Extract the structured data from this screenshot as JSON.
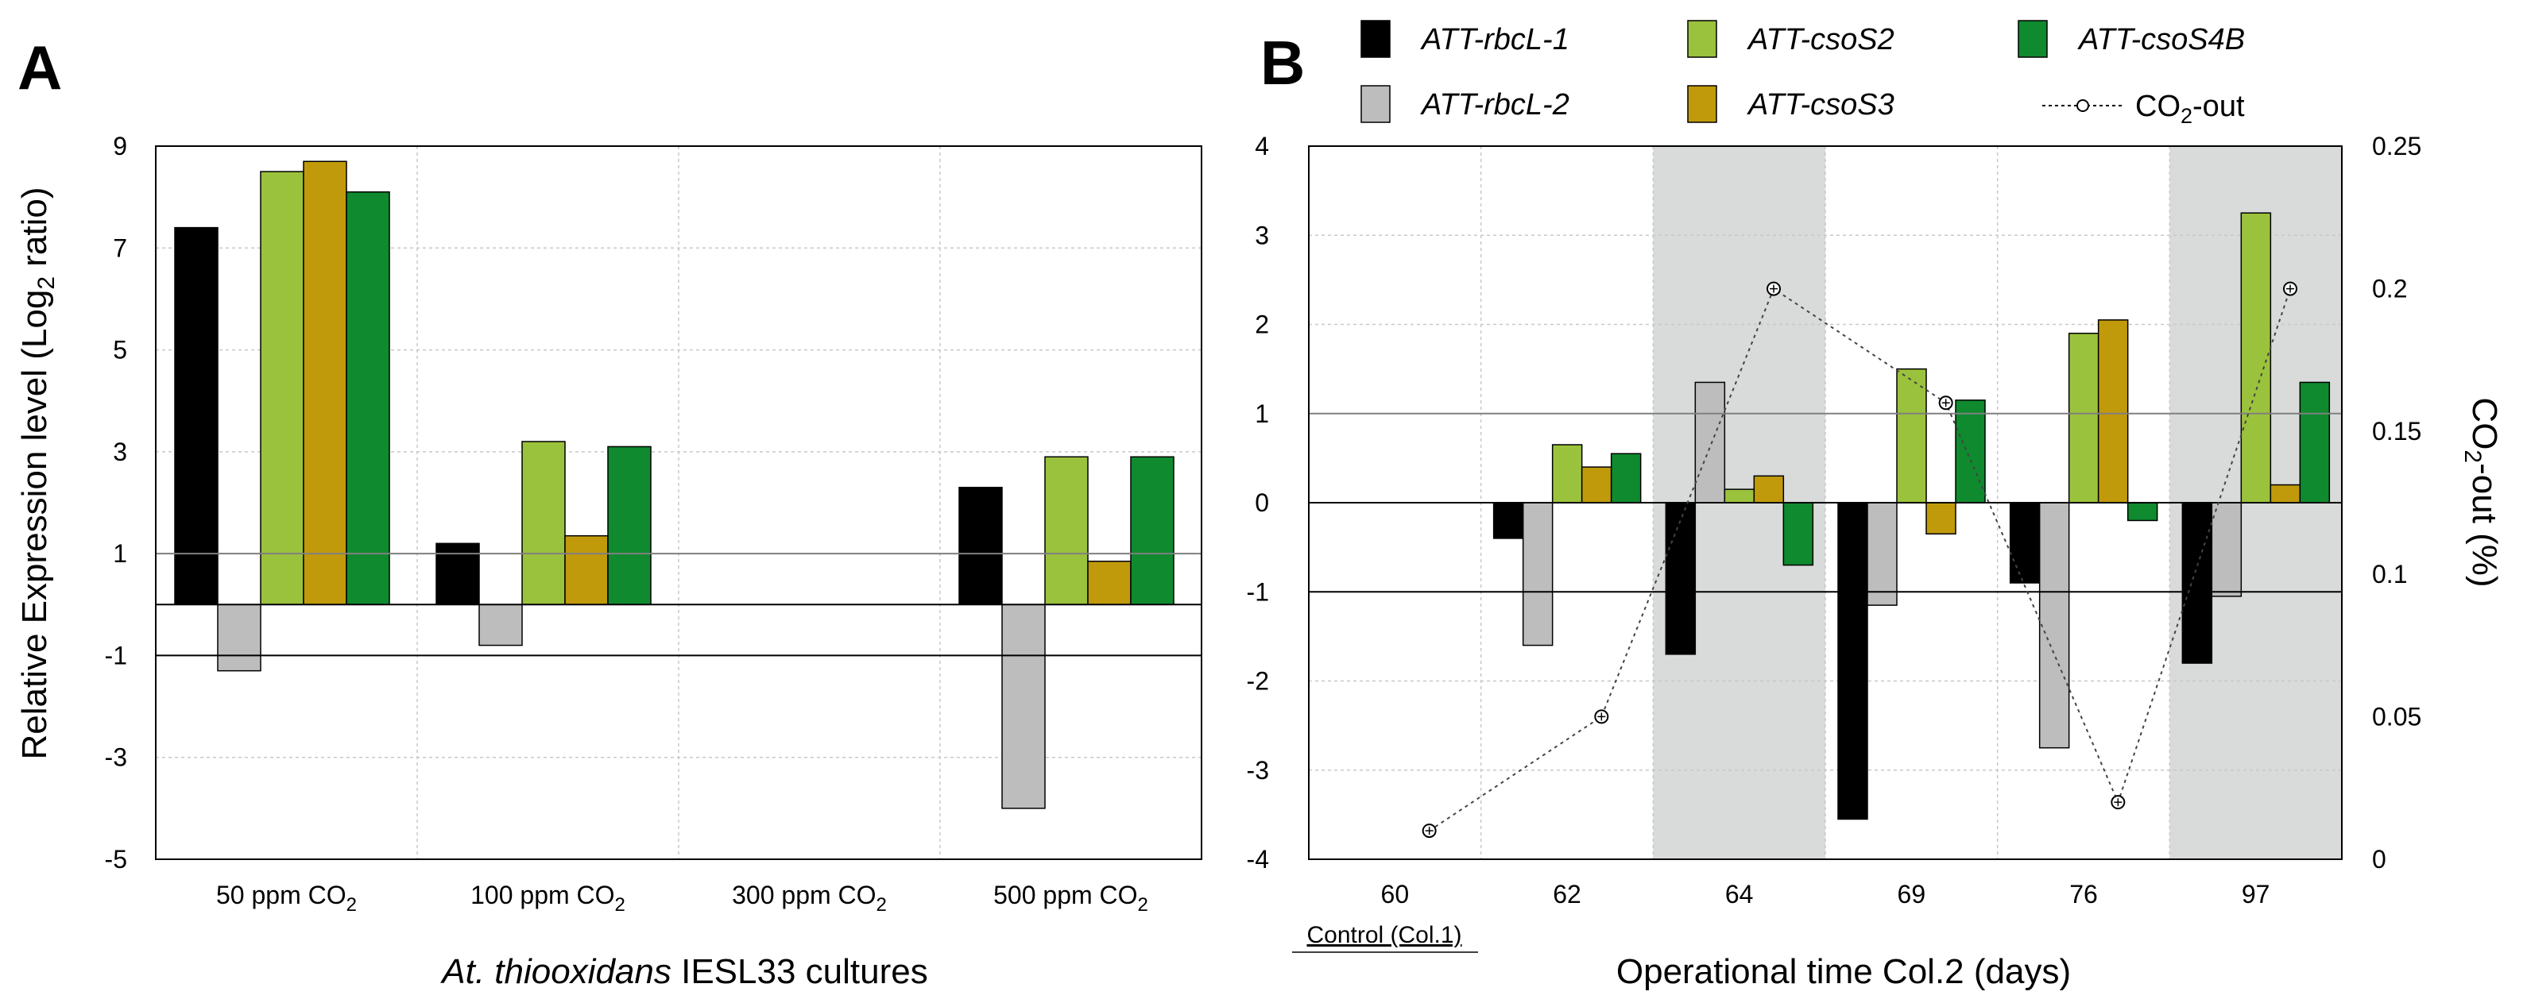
{
  "colors": {
    "rbcL1": "#000000",
    "rbcL2": "#bdbdbd",
    "csoS2": "#9bc23c",
    "csoS3": "#c19a0b",
    "csoS4B": "#0f8a2e",
    "shade": "#d9dada"
  },
  "legend": {
    "items": [
      {
        "key": "rbcL1",
        "label": "ATT-rbcL-1"
      },
      {
        "key": "csoS2",
        "label": "ATT-csoS2"
      },
      {
        "key": "csoS4B",
        "label": "ATT-csoS4B"
      },
      {
        "key": "rbcL2",
        "label": "ATT-rbcL-2"
      },
      {
        "key": "csoS3",
        "label": "ATT-csoS3"
      }
    ],
    "co2_label": "CO",
    "co2_sub": "2",
    "co2_suffix": "-out"
  },
  "chart_data": [
    {
      "panel": "A",
      "type": "bar",
      "ylabel": "Relative Expression level (Log",
      "ylabel_sub": "2",
      "ylabel_suffix": " ratio)",
      "xlabel_italic": "At. thiooxidans",
      "xlabel_rest": " IESL33 cultures",
      "ylim": [
        -5,
        9
      ],
      "yticks": [
        -5,
        -3,
        -1,
        1,
        3,
        5,
        7,
        9
      ],
      "reference_lines": [
        1,
        0,
        -1
      ],
      "grid": true,
      "categories": [
        {
          "label": "50 ppm CO",
          "sub": "2"
        },
        {
          "label": "100 ppm CO",
          "sub": "2"
        },
        {
          "label": "300 ppm CO",
          "sub": "2"
        },
        {
          "label": "500 ppm CO",
          "sub": "2"
        }
      ],
      "series": [
        {
          "name": "ATT-rbcL-1",
          "key": "rbcL1",
          "values": [
            7.4,
            1.2,
            null,
            2.3
          ]
        },
        {
          "name": "ATT-rbcL-2",
          "key": "rbcL2",
          "values": [
            -1.3,
            -0.8,
            null,
            -4.0
          ]
        },
        {
          "name": "ATT-csoS2",
          "key": "csoS2",
          "values": [
            8.5,
            3.2,
            null,
            2.9
          ]
        },
        {
          "name": "ATT-csoS3",
          "key": "csoS3",
          "values": [
            8.7,
            1.35,
            null,
            0.85
          ]
        },
        {
          "name": "ATT-csoS4B",
          "key": "csoS4B",
          "values": [
            8.1,
            3.1,
            null,
            2.9
          ]
        }
      ]
    },
    {
      "panel": "B",
      "type": "bar",
      "xlabel": "Operational time Col.2 (days)",
      "ylabel_right": "CO",
      "ylabel_right_sub": "2",
      "ylabel_right_suffix": "-out (%)",
      "ylim": [
        -4,
        4
      ],
      "yticks": [
        -4,
        -3,
        -2,
        -1,
        0,
        1,
        2,
        3,
        4
      ],
      "y2lim": [
        0,
        0.25
      ],
      "y2ticks": [
        "0",
        "0.05",
        "0.1",
        "0.15",
        "0.2",
        "0.25"
      ],
      "reference_lines": [
        1,
        0,
        -1
      ],
      "grid": true,
      "categories": [
        "60",
        "62",
        "64",
        "69",
        "76",
        "97"
      ],
      "control_label": "Control (Col.1)",
      "shaded_categories": [
        "64",
        "97"
      ],
      "series": [
        {
          "name": "ATT-rbcL-1",
          "key": "rbcL1",
          "values": [
            null,
            -0.4,
            -1.7,
            -3.55,
            -0.9,
            -1.8
          ]
        },
        {
          "name": "ATT-rbcL-2",
          "key": "rbcL2",
          "values": [
            null,
            -1.6,
            1.35,
            -1.15,
            -2.75,
            -1.05
          ]
        },
        {
          "name": "ATT-csoS2",
          "key": "csoS2",
          "values": [
            null,
            0.65,
            0.15,
            1.5,
            1.9,
            3.25
          ]
        },
        {
          "name": "ATT-csoS3",
          "key": "csoS3",
          "values": [
            null,
            0.4,
            0.3,
            -0.35,
            2.05,
            0.2
          ]
        },
        {
          "name": "ATT-csoS4B",
          "key": "csoS4B",
          "values": [
            null,
            0.55,
            -0.7,
            1.15,
            -0.2,
            1.35
          ]
        }
      ],
      "co2_out": {
        "name": "CO2-out",
        "x": [
          "60",
          "62",
          "64",
          "69",
          "76",
          "97"
        ],
        "values": [
          0.01,
          0.05,
          0.2,
          0.16,
          0.02,
          0.2
        ]
      }
    }
  ]
}
